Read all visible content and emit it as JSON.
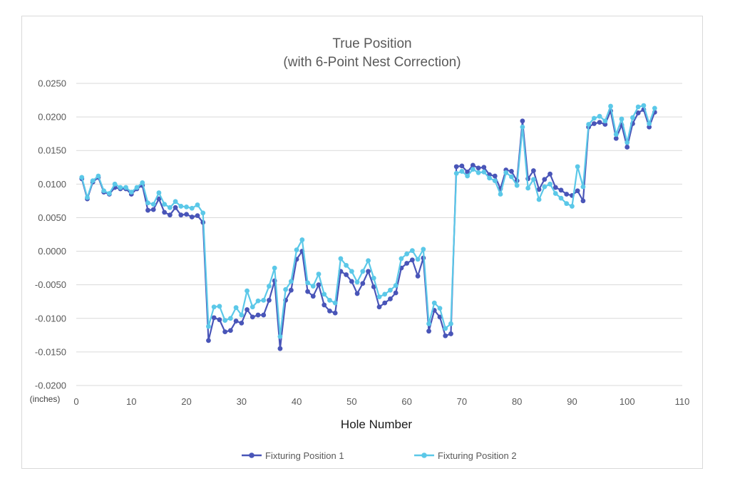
{
  "chart_data": {
    "type": "line",
    "title": [
      "True Position",
      "(with 6-Point Nest Correction)"
    ],
    "xlabel": "Hole Number",
    "ylabel": "",
    "y_unit_label": "(inches)",
    "xlim": [
      0,
      110
    ],
    "ylim": [
      -0.02,
      0.025
    ],
    "x_ticks": [
      "0",
      "10",
      "20",
      "30",
      "40",
      "50",
      "60",
      "70",
      "80",
      "90",
      "100",
      "110"
    ],
    "y_ticks": [
      "0.0250",
      "0.0200",
      "0.0150",
      "0.0100",
      "0.0050",
      "0.0000",
      "-0.0050",
      "-0.0100",
      "-0.0150",
      "-0.0200"
    ],
    "grid": true,
    "legend_position": "bottom",
    "series": [
      {
        "name": "Fixturing Position 1",
        "color": "#4955b8",
        "x": [
          1,
          2,
          3,
          4,
          5,
          6,
          7,
          8,
          9,
          10,
          11,
          12,
          13,
          14,
          15,
          16,
          17,
          18,
          19,
          20,
          21,
          22,
          23,
          24,
          25,
          26,
          27,
          28,
          29,
          30,
          31,
          32,
          33,
          34,
          35,
          36,
          37,
          38,
          39,
          40,
          41,
          42,
          43,
          44,
          45,
          46,
          47,
          48,
          49,
          50,
          51,
          52,
          53,
          54,
          55,
          56,
          57,
          58,
          59,
          60,
          61,
          62,
          63,
          64,
          65,
          66,
          67,
          68,
          69,
          70,
          71,
          72,
          73,
          74,
          75,
          76,
          77,
          78,
          79,
          80,
          81,
          82,
          83,
          84,
          85,
          86,
          87,
          88,
          89,
          90,
          91,
          92,
          93,
          94,
          95,
          96,
          97,
          98,
          99,
          100,
          101,
          102,
          103,
          104,
          105
        ],
        "values": [
          0.0108,
          0.0078,
          0.0103,
          0.011,
          0.0088,
          0.0085,
          0.0095,
          0.0093,
          0.0093,
          0.0085,
          0.0093,
          0.0098,
          0.0061,
          0.0062,
          0.0078,
          0.0058,
          0.0054,
          0.0065,
          0.0054,
          0.0055,
          0.0051,
          0.0053,
          0.0043,
          -0.0133,
          -0.0099,
          -0.0102,
          -0.012,
          -0.0118,
          -0.0104,
          -0.0107,
          -0.0087,
          -0.0098,
          -0.0095,
          -0.0095,
          -0.0073,
          -0.0044,
          -0.0145,
          -0.0073,
          -0.0058,
          -0.0012,
          0.0,
          -0.006,
          -0.0067,
          -0.005,
          -0.008,
          -0.0089,
          -0.0092,
          -0.003,
          -0.0035,
          -0.0045,
          -0.0063,
          -0.0048,
          -0.003,
          -0.0053,
          -0.0083,
          -0.0077,
          -0.0071,
          -0.0062,
          -0.0025,
          -0.0018,
          -0.0013,
          -0.0037,
          -0.001,
          -0.0119,
          -0.0088,
          -0.0098,
          -0.0126,
          -0.0123,
          0.0126,
          0.0127,
          0.0118,
          0.0128,
          0.0124,
          0.0125,
          0.0114,
          0.0112,
          0.0093,
          0.0121,
          0.0119,
          0.0105,
          0.0194,
          0.0108,
          0.012,
          0.0092,
          0.0107,
          0.0115,
          0.0095,
          0.0091,
          0.0085,
          0.0083,
          0.009,
          0.0075,
          0.0185,
          0.019,
          0.0192,
          0.0189,
          0.0209,
          0.0168,
          0.0188,
          0.0155,
          0.019,
          0.0206,
          0.0211,
          0.0185,
          0.0207
        ]
      },
      {
        "name": "Fixturing Position 2",
        "color": "#5bc8e8",
        "x": [
          1,
          2,
          3,
          4,
          5,
          6,
          7,
          8,
          9,
          10,
          11,
          12,
          13,
          14,
          15,
          16,
          17,
          18,
          19,
          20,
          21,
          22,
          23,
          24,
          25,
          26,
          27,
          28,
          29,
          30,
          31,
          32,
          33,
          34,
          35,
          36,
          37,
          38,
          39,
          40,
          41,
          42,
          43,
          44,
          45,
          46,
          47,
          48,
          49,
          50,
          51,
          52,
          53,
          54,
          55,
          56,
          57,
          58,
          59,
          60,
          61,
          62,
          63,
          64,
          65,
          66,
          67,
          68,
          69,
          70,
          71,
          72,
          73,
          74,
          75,
          76,
          77,
          78,
          79,
          80,
          81,
          82,
          83,
          84,
          85,
          86,
          87,
          88,
          89,
          90,
          91,
          92,
          93,
          94,
          95,
          96,
          97,
          98,
          99,
          100,
          101,
          102,
          103,
          104,
          105
        ],
        "values": [
          0.011,
          0.008,
          0.0105,
          0.0112,
          0.009,
          0.0086,
          0.01,
          0.0095,
          0.0095,
          0.0088,
          0.0095,
          0.0102,
          0.0072,
          0.007,
          0.0087,
          0.007,
          0.0065,
          0.0074,
          0.0067,
          0.0066,
          0.0064,
          0.0069,
          0.0057,
          -0.0112,
          -0.0083,
          -0.0082,
          -0.0103,
          -0.01,
          -0.0084,
          -0.0095,
          -0.0059,
          -0.0083,
          -0.0074,
          -0.0073,
          -0.0052,
          -0.0025,
          -0.0127,
          -0.0057,
          -0.0045,
          0.0002,
          0.0017,
          -0.0047,
          -0.0052,
          -0.0034,
          -0.0064,
          -0.0073,
          -0.0077,
          -0.0011,
          -0.0021,
          -0.003,
          -0.0046,
          -0.003,
          -0.0014,
          -0.004,
          -0.0068,
          -0.0064,
          -0.0058,
          -0.0051,
          -0.0011,
          -0.0004,
          0.0001,
          -0.0012,
          0.0003,
          -0.0108,
          -0.0077,
          -0.0085,
          -0.0115,
          -0.0108,
          0.0116,
          0.0119,
          0.0112,
          0.0122,
          0.0117,
          0.0118,
          0.0109,
          0.0105,
          0.0085,
          0.0117,
          0.0111,
          0.0098,
          0.0185,
          0.0094,
          0.0107,
          0.0077,
          0.0096,
          0.01,
          0.0086,
          0.0079,
          0.0071,
          0.0067,
          0.0126,
          0.0096,
          0.0189,
          0.0198,
          0.0201,
          0.0194,
          0.0216,
          0.0174,
          0.0197,
          0.0162,
          0.0199,
          0.0215,
          0.0217,
          0.019,
          0.0213
        ]
      }
    ]
  }
}
